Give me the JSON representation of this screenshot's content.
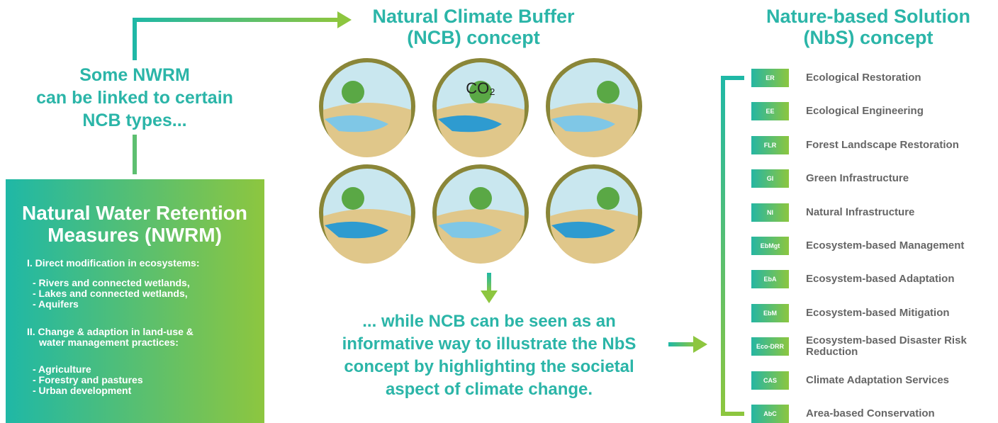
{
  "ncb_heading": [
    "Natural Climate Buffer",
    "(NCB) concept"
  ],
  "nbs_heading": [
    "Nature-based Solution",
    "(NbS) concept"
  ],
  "link_text": [
    "Some NWRM",
    "can be linked to certain",
    "NCB types..."
  ],
  "nwrm": {
    "title": [
      "Natural Water Retention",
      "Measures (NWRM)"
    ],
    "section1": "I. Direct modification in ecosystems:",
    "items1": [
      "- Rivers and connected wetlands,",
      "- Lakes and connected wetlands,",
      "- Aquifers"
    ],
    "section2": [
      "II. Change & adaption in land-use &",
      "water management practices:"
    ],
    "items2": [
      "- Agriculture",
      "- Forestry and pastures",
      "- Urban development"
    ]
  },
  "icon_label": "CO₂",
  "ncb_text": [
    "... while NCB can be seen as an",
    "informative way to illustrate the NbS",
    "concept by highlighting the societal",
    "aspect of climate change."
  ],
  "nbs": [
    {
      "abbr": "ER",
      "name": "Ecological Restoration"
    },
    {
      "abbr": "EE",
      "name": "Ecological Engineering"
    },
    {
      "abbr": "FLR",
      "name": "Forest Landscape Restoration"
    },
    {
      "abbr": "GI",
      "name": "Green Infrastructure"
    },
    {
      "abbr": "NI",
      "name": "Natural Infrastructure"
    },
    {
      "abbr": "EbMgt",
      "name": "Ecosystem-based Management"
    },
    {
      "abbr": "EbA",
      "name": "Ecosystem-based Adaptation"
    },
    {
      "abbr": "EbM",
      "name": "Ecosystem-based Mitigation"
    },
    {
      "abbr": "Eco-DRR",
      "name": "Ecosystem-based Disaster Risk Reduction"
    },
    {
      "abbr": "CAS",
      "name": "Climate Adaptation Services"
    },
    {
      "abbr": "AbC",
      "name": "Area-based Conservation"
    }
  ]
}
